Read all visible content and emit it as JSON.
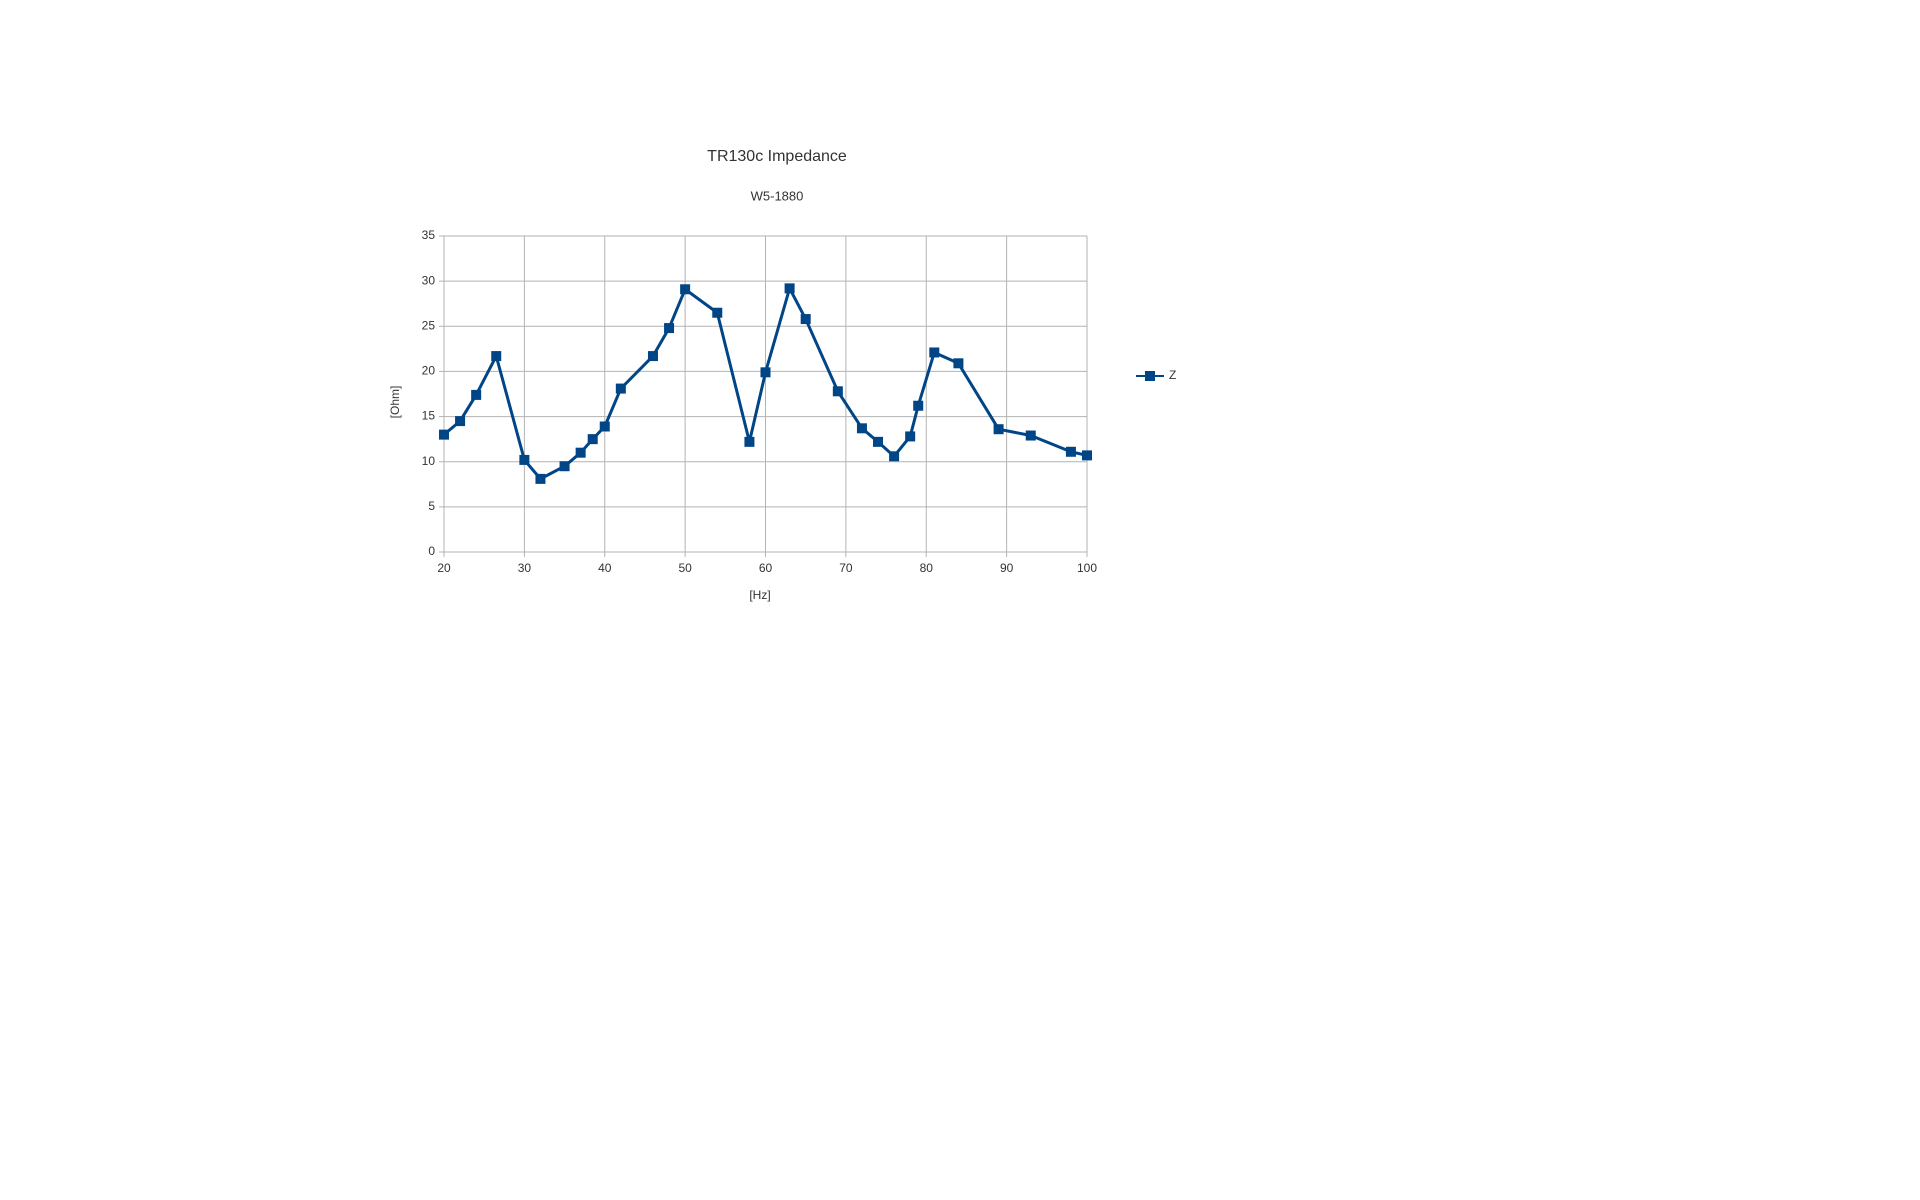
{
  "chart_data": {
    "type": "line",
    "title": "TR130c Impedance",
    "subtitle": "W5-1880",
    "x_label": "[Hz]",
    "y_label": "[Ohm]",
    "x": [
      20,
      22,
      24,
      26.5,
      30,
      32,
      35,
      37,
      38.5,
      40,
      42,
      46,
      48,
      50,
      54,
      58,
      60,
      63,
      65,
      69,
      72,
      74,
      76,
      78,
      79,
      81,
      84,
      89,
      93,
      98,
      100
    ],
    "series": [
      {
        "name": "Z",
        "color": "#004586",
        "values": [
          13.0,
          14.5,
          17.4,
          21.7,
          10.2,
          8.1,
          9.5,
          11.0,
          12.5,
          13.9,
          18.1,
          21.7,
          24.8,
          29.1,
          26.5,
          12.2,
          19.9,
          29.2,
          25.8,
          17.8,
          13.7,
          12.2,
          10.6,
          12.8,
          16.2,
          22.1,
          20.9,
          13.6,
          12.9,
          11.1,
          10.7
        ]
      }
    ],
    "xlim": [
      20,
      100
    ],
    "xticks": [
      20,
      30,
      40,
      50,
      60,
      70,
      80,
      90,
      100
    ],
    "ylim": [
      0,
      35
    ],
    "yticks": [
      0,
      5,
      10,
      15,
      20,
      25,
      30,
      35
    ],
    "grid": true,
    "legend": "right"
  }
}
